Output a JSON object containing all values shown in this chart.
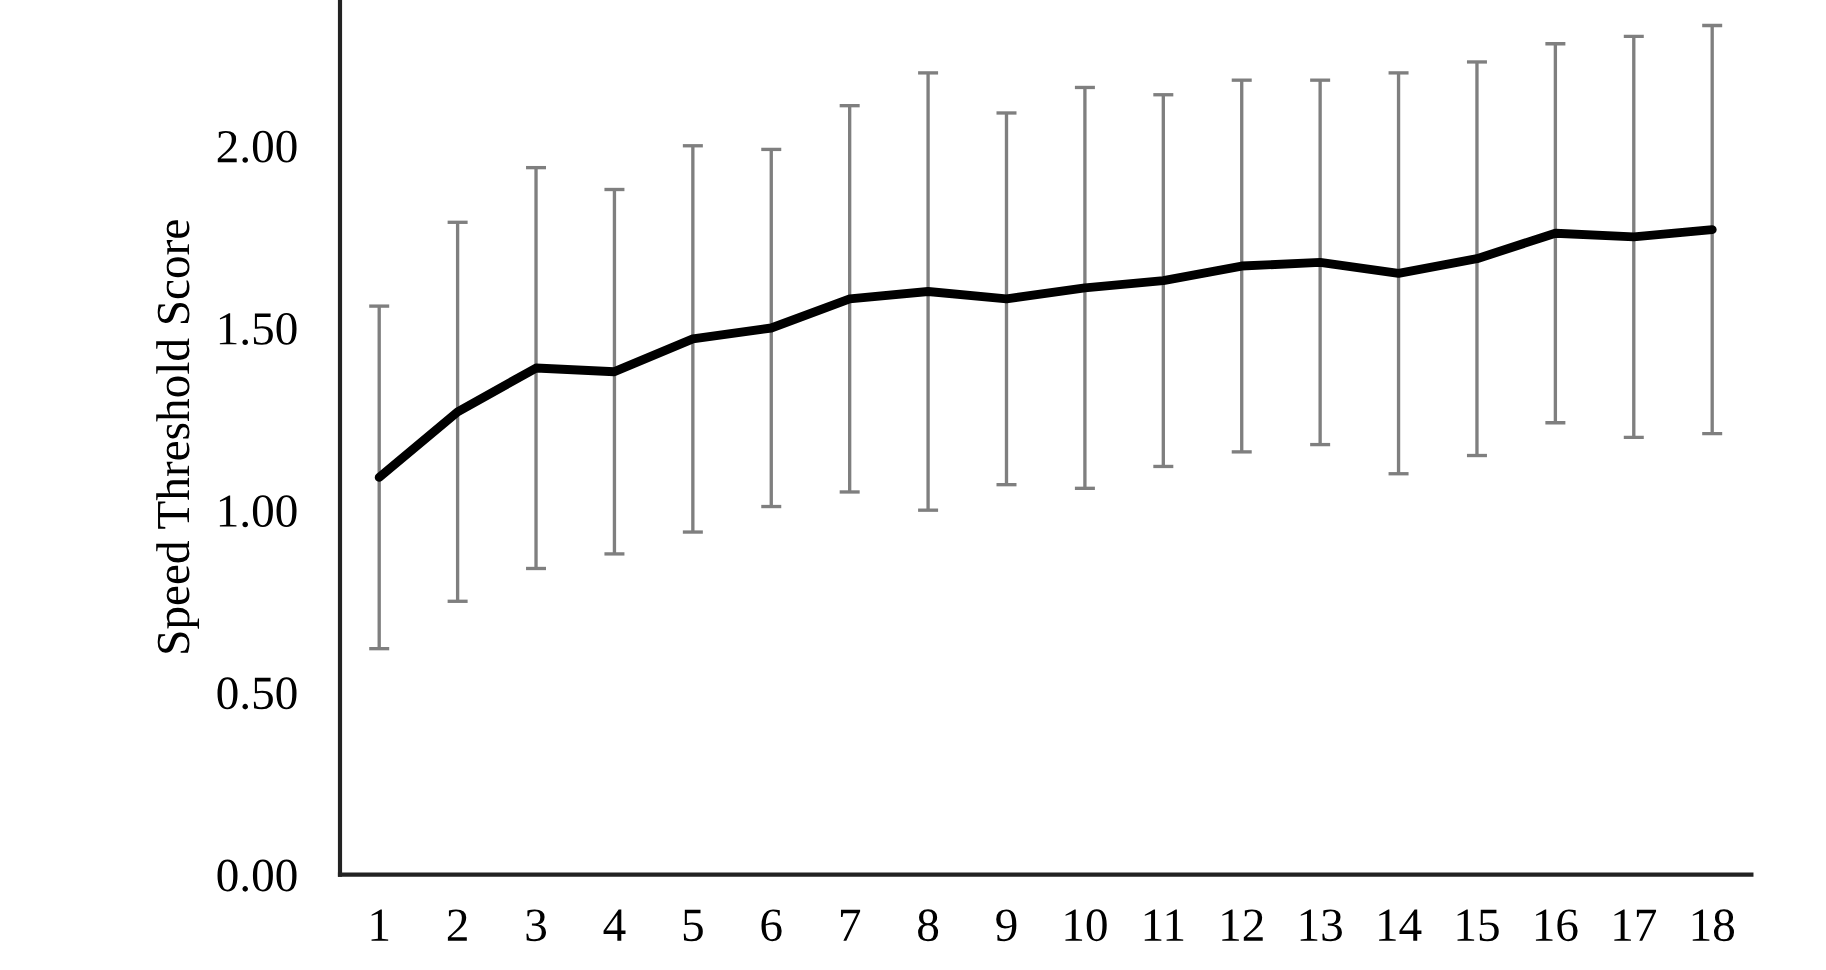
{
  "chart_data": {
    "type": "line",
    "ylabel": "Speed Threshold Score",
    "categories": [
      "1",
      "2",
      "3",
      "4",
      "5",
      "6",
      "7",
      "8",
      "9",
      "10",
      "11",
      "12",
      "13",
      "14",
      "15",
      "16",
      "17",
      "18"
    ],
    "series": [
      {
        "color": "#000000",
        "values": [
          1.09,
          1.27,
          1.39,
          1.38,
          1.47,
          1.5,
          1.58,
          1.6,
          1.58,
          1.61,
          1.63,
          1.67,
          1.68,
          1.65,
          1.69,
          1.76,
          1.75,
          1.77
        ],
        "errors": [
          0.47,
          0.52,
          0.55,
          0.5,
          0.53,
          0.49,
          0.53,
          0.6,
          0.51,
          0.55,
          0.51,
          0.51,
          0.5,
          0.55,
          0.54,
          0.52,
          0.55,
          0.56
        ]
      }
    ],
    "ylim": [
      0,
      2.4
    ],
    "yticks": [
      {
        "value": 0,
        "label": "0.00"
      },
      {
        "value": 0.5,
        "label": "0.50"
      },
      {
        "value": 1.0,
        "label": "1.00"
      },
      {
        "value": 1.5,
        "label": "1.50"
      },
      {
        "value": 2.0,
        "label": "2.00"
      }
    ],
    "grid": false,
    "marker": "none",
    "line_style": "solid"
  }
}
